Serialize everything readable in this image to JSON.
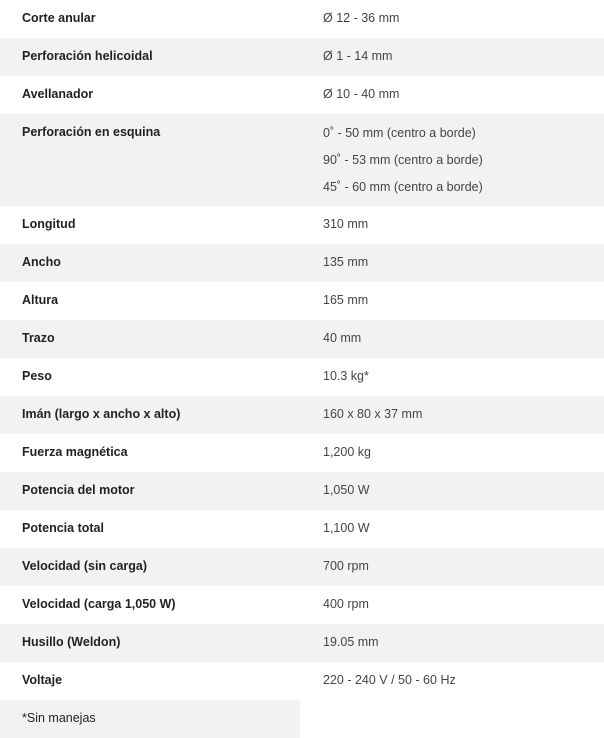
{
  "specs": [
    {
      "label": "Corte anular",
      "values": [
        "Ø 12 - 36 mm"
      ]
    },
    {
      "label": "Perforación helicoidal",
      "values": [
        "Ø 1 - 14 mm"
      ]
    },
    {
      "label": "Avellanador",
      "values": [
        "Ø 10 - 40 mm"
      ]
    },
    {
      "label": "Perforación en esquina",
      "values": [
        "0˚ - 50 mm (centro a borde)",
        "90˚ - 53 mm (centro a borde)",
        "45˚ - 60 mm (centro a borde)"
      ]
    },
    {
      "label": "Longitud",
      "values": [
        "310 mm"
      ]
    },
    {
      "label": "Ancho",
      "values": [
        "135 mm"
      ]
    },
    {
      "label": "Altura",
      "values": [
        "165 mm"
      ]
    },
    {
      "label": "Trazo",
      "values": [
        "40 mm"
      ]
    },
    {
      "label": "Peso",
      "values": [
        "10.3 kg*"
      ]
    },
    {
      "label": "Imán (largo x ancho x alto)",
      "values": [
        "160 x 80 x 37 mm"
      ]
    },
    {
      "label": "Fuerza magnética",
      "values": [
        "1,200 kg"
      ]
    },
    {
      "label": "Potencia del motor",
      "values": [
        "1,050 W"
      ]
    },
    {
      "label": "Potencia total",
      "values": [
        "1,100 W"
      ]
    },
    {
      "label": "Velocidad (sin carga)",
      "values": [
        "700 rpm"
      ]
    },
    {
      "label": "Velocidad (carga 1,050 W)",
      "values": [
        "400 rpm"
      ]
    },
    {
      "label": "Husillo (Weldon)",
      "values": [
        "19.05 mm"
      ]
    },
    {
      "label": "Voltaje",
      "values": [
        "220 - 240 V / 50 - 60 Hz"
      ]
    }
  ],
  "footnote": "*Sin manejas",
  "colors": {
    "row_alt": "#f2f2f2",
    "label": "#222222",
    "value": "#444444"
  }
}
